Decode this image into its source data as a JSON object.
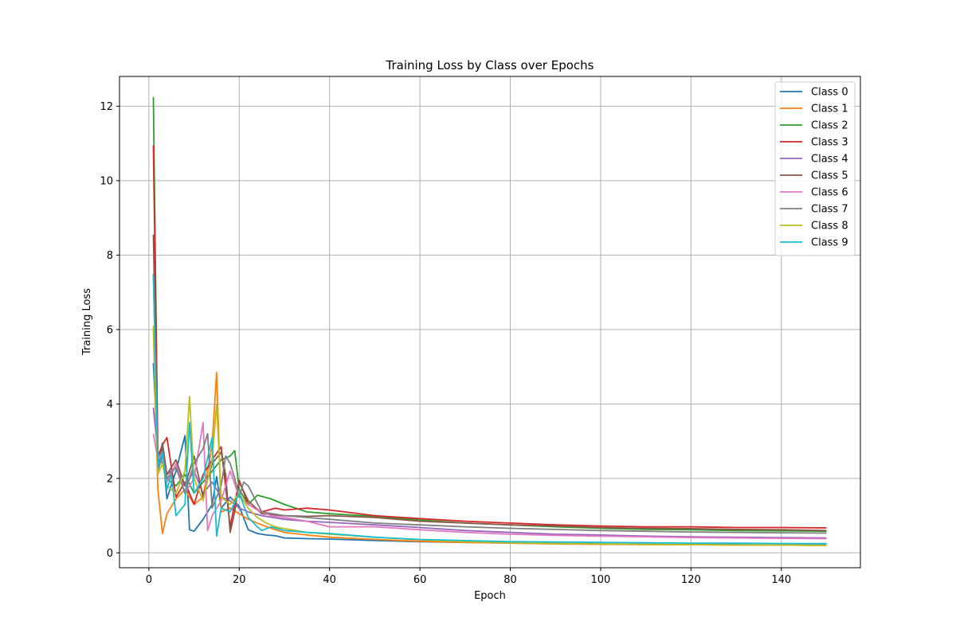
{
  "chart_data": {
    "type": "line",
    "title": "Training Loss by Class over Epochs",
    "xlabel": "Epoch",
    "ylabel": "Training Loss",
    "xlim": [
      -6.5,
      157.5
    ],
    "ylim": [
      -0.4,
      12.8
    ],
    "xticks": [
      0,
      20,
      40,
      60,
      80,
      100,
      120,
      140
    ],
    "yticks": [
      0,
      2,
      4,
      6,
      8,
      10,
      12
    ],
    "grid": true,
    "legend_position": "top-right",
    "series": [
      {
        "name": "Class 0",
        "color": "#1f77b4",
        "x": [
          1,
          2,
          3,
          4,
          6,
          8,
          9,
          10,
          12,
          14,
          15,
          16,
          18,
          20,
          22,
          24,
          26,
          28,
          30,
          35,
          40,
          50,
          60,
          70,
          80,
          90,
          100,
          110,
          120,
          130,
          140,
          150
        ],
        "y": [
          5.1,
          2.6,
          2.8,
          1.45,
          2.2,
          3.15,
          0.62,
          0.58,
          0.9,
          1.3,
          2.05,
          1.2,
          1.5,
          1.25,
          0.62,
          0.52,
          0.48,
          0.46,
          0.4,
          0.38,
          0.37,
          0.33,
          0.3,
          0.28,
          0.26,
          0.25,
          0.24,
          0.23,
          0.22,
          0.22,
          0.21,
          0.21
        ]
      },
      {
        "name": "Class 1",
        "color": "#ff7f0e",
        "x": [
          1,
          2,
          3,
          4,
          6,
          8,
          10,
          12,
          14,
          15,
          16,
          18,
          20,
          22,
          25,
          28,
          30,
          35,
          40,
          50,
          60,
          70,
          80,
          90,
          100,
          110,
          120,
          130,
          140,
          150
        ],
        "y": [
          6.0,
          1.7,
          0.52,
          1.05,
          1.45,
          1.7,
          1.3,
          1.5,
          2.9,
          4.85,
          1.1,
          1.2,
          1.05,
          0.9,
          0.75,
          0.62,
          0.55,
          0.48,
          0.42,
          0.36,
          0.31,
          0.28,
          0.26,
          0.24,
          0.23,
          0.22,
          0.22,
          0.21,
          0.21,
          0.2
        ]
      },
      {
        "name": "Class 2",
        "color": "#2ca02c",
        "x": [
          1,
          2,
          3,
          4,
          6,
          8,
          10,
          12,
          14,
          16,
          18,
          19,
          20,
          22,
          24,
          27,
          30,
          35,
          40,
          50,
          60,
          70,
          80,
          90,
          100,
          110,
          120,
          130,
          140,
          150
        ],
        "y": [
          12.25,
          2.4,
          2.9,
          2.0,
          1.8,
          2.1,
          1.6,
          1.9,
          2.2,
          2.5,
          2.6,
          2.75,
          1.7,
          1.3,
          1.55,
          1.45,
          1.3,
          1.1,
          1.05,
          0.98,
          0.88,
          0.8,
          0.75,
          0.7,
          0.66,
          0.63,
          0.62,
          0.6,
          0.59,
          0.58
        ]
      },
      {
        "name": "Class 3",
        "color": "#d62728",
        "x": [
          1,
          2,
          3,
          4,
          6,
          8,
          10,
          12,
          14,
          16,
          18,
          20,
          22,
          25,
          28,
          30,
          35,
          40,
          50,
          60,
          70,
          80,
          90,
          100,
          110,
          120,
          130,
          140,
          150
        ],
        "y": [
          10.95,
          2.6,
          2.9,
          3.1,
          1.5,
          1.9,
          1.3,
          2.1,
          2.5,
          2.85,
          0.7,
          1.95,
          1.3,
          1.1,
          1.2,
          1.15,
          1.2,
          1.15,
          1.0,
          0.92,
          0.85,
          0.8,
          0.75,
          0.72,
          0.7,
          0.7,
          0.68,
          0.68,
          0.67
        ]
      },
      {
        "name": "Class 4",
        "color": "#9467bd",
        "x": [
          1,
          2,
          3,
          4,
          6,
          8,
          10,
          12,
          14,
          16,
          18,
          20,
          22,
          25,
          30,
          35,
          40,
          50,
          60,
          70,
          80,
          90,
          100,
          110,
          120,
          130,
          140,
          150
        ],
        "y": [
          3.9,
          2.7,
          2.4,
          2.1,
          2.3,
          1.8,
          2.2,
          1.6,
          1.9,
          1.5,
          1.4,
          1.2,
          1.1,
          1.0,
          0.9,
          0.85,
          0.82,
          0.75,
          0.68,
          0.6,
          0.55,
          0.5,
          0.48,
          0.45,
          0.43,
          0.42,
          0.41,
          0.4
        ]
      },
      {
        "name": "Class 5",
        "color": "#8c564b",
        "x": [
          1,
          2,
          3,
          4,
          6,
          8,
          10,
          12,
          14,
          16,
          17,
          18,
          19,
          20,
          22,
          25,
          30,
          35,
          40,
          50,
          60,
          70,
          80,
          90,
          100,
          110,
          120,
          130,
          140,
          150
        ],
        "y": [
          8.55,
          2.3,
          2.95,
          2.1,
          2.5,
          1.8,
          2.6,
          1.5,
          2.4,
          2.7,
          2.1,
          0.55,
          1.1,
          1.9,
          1.4,
          1.05,
          1.0,
          0.98,
          1.0,
          0.95,
          0.85,
          0.8,
          0.75,
          0.72,
          0.68,
          0.66,
          0.65,
          0.63,
          0.62,
          0.6
        ]
      },
      {
        "name": "Class 6",
        "color": "#e377c2",
        "x": [
          1,
          2,
          3,
          4,
          6,
          8,
          10,
          12,
          13,
          14,
          16,
          18,
          20,
          22,
          24,
          27,
          30,
          35,
          40,
          50,
          60,
          70,
          80,
          90,
          100,
          110,
          120,
          130,
          140,
          150
        ],
        "y": [
          3.2,
          2.5,
          2.7,
          1.9,
          2.4,
          1.6,
          2.0,
          3.5,
          0.6,
          1.0,
          1.4,
          2.2,
          1.5,
          1.3,
          1.15,
          1.0,
          0.95,
          0.85,
          0.7,
          0.7,
          0.62,
          0.55,
          0.5,
          0.47,
          0.45,
          0.43,
          0.41,
          0.4,
          0.39,
          0.38
        ]
      },
      {
        "name": "Class 7",
        "color": "#7f7f7f",
        "x": [
          1,
          2,
          3,
          4,
          6,
          8,
          10,
          12,
          13,
          14,
          16,
          17,
          18,
          19,
          20,
          21,
          22,
          25,
          30,
          35,
          40,
          50,
          60,
          70,
          80,
          90,
          100,
          110,
          120,
          130,
          140,
          150
        ],
        "y": [
          7.5,
          2.2,
          2.6,
          2.0,
          2.3,
          1.6,
          2.4,
          2.8,
          3.2,
          1.2,
          1.8,
          2.6,
          2.4,
          2.0,
          1.5,
          1.9,
          1.8,
          1.1,
          1.0,
          0.95,
          0.9,
          0.8,
          0.75,
          0.7,
          0.66,
          0.63,
          0.6,
          0.58,
          0.56,
          0.55,
          0.54,
          0.53
        ]
      },
      {
        "name": "Class 8",
        "color": "#bcbd22",
        "x": [
          1,
          2,
          3,
          4,
          6,
          8,
          9,
          10,
          12,
          14,
          15,
          16,
          18,
          20,
          22,
          24,
          26,
          28,
          30,
          35,
          40,
          50,
          60,
          70,
          80,
          90,
          100,
          110,
          120,
          130,
          140,
          150
        ],
        "y": [
          6.1,
          2.1,
          2.4,
          1.8,
          1.6,
          2.2,
          4.2,
          2.0,
          1.4,
          2.5,
          4.0,
          1.5,
          1.3,
          1.6,
          1.2,
          0.95,
          0.8,
          0.7,
          0.65,
          0.55,
          0.5,
          0.42,
          0.35,
          0.3,
          0.27,
          0.25,
          0.24,
          0.23,
          0.22,
          0.21,
          0.21,
          0.2
        ]
      },
      {
        "name": "Class 9",
        "color": "#17becf",
        "x": [
          1,
          2,
          3,
          4,
          5,
          6,
          8,
          9,
          10,
          12,
          14,
          15,
          16,
          18,
          20,
          22,
          24,
          25,
          27,
          30,
          35,
          40,
          50,
          60,
          70,
          80,
          90,
          100,
          110,
          120,
          130,
          140,
          150
        ],
        "y": [
          7.45,
          2.3,
          2.7,
          1.7,
          2.1,
          1.0,
          1.3,
          3.5,
          1.6,
          2.0,
          3.1,
          0.45,
          1.2,
          1.1,
          1.6,
          0.95,
          0.7,
          0.6,
          0.7,
          0.6,
          0.55,
          0.52,
          0.42,
          0.36,
          0.33,
          0.3,
          0.29,
          0.28,
          0.27,
          0.26,
          0.26,
          0.25,
          0.25
        ]
      }
    ]
  }
}
